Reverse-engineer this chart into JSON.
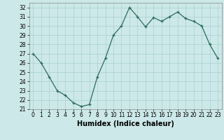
{
  "x": [
    0,
    1,
    2,
    3,
    4,
    5,
    6,
    7,
    8,
    9,
    10,
    11,
    12,
    13,
    14,
    15,
    16,
    17,
    18,
    19,
    20,
    21,
    22,
    23
  ],
  "y": [
    27,
    26,
    24.5,
    23,
    22.5,
    21.7,
    21.3,
    21.5,
    24.5,
    26.5,
    29,
    30,
    32,
    31,
    29.9,
    30.9,
    30.5,
    31.0,
    31.5,
    30.8,
    30.5,
    30.0,
    28.0,
    26.5
  ],
  "line_color": "#2e6b5e",
  "marker": "+",
  "bg_color": "#cce8e8",
  "grid_color": "#aad0d0",
  "xlabel": "Humidex (Indice chaleur)",
  "ylim": [
    21,
    32.5
  ],
  "xlim": [
    -0.5,
    23.5
  ],
  "yticks": [
    21,
    22,
    23,
    24,
    25,
    26,
    27,
    28,
    29,
    30,
    31,
    32
  ],
  "xticks": [
    0,
    1,
    2,
    3,
    4,
    5,
    6,
    7,
    8,
    9,
    10,
    11,
    12,
    13,
    14,
    15,
    16,
    17,
    18,
    19,
    20,
    21,
    22,
    23
  ],
  "tick_fontsize": 5.5,
  "label_fontsize": 7
}
